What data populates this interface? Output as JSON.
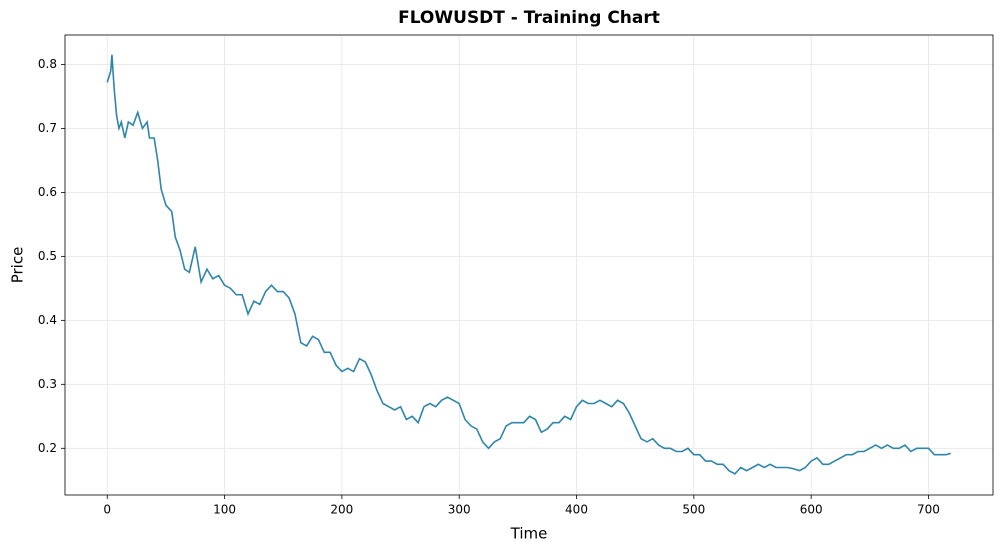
{
  "chart_data": {
    "type": "line",
    "title": "FLOWUSDT - Training Chart",
    "x_label": "Time",
    "y_label": "Price",
    "xlim": [
      -36,
      755
    ],
    "ylim": [
      0.127,
      0.846
    ],
    "xticks": [
      0,
      100,
      200,
      300,
      400,
      500,
      600,
      700
    ],
    "yticks": [
      0.2,
      0.3,
      0.4,
      0.5,
      0.6,
      0.7,
      0.8
    ],
    "grid": true,
    "x": [
      0,
      3,
      4,
      6,
      8,
      10,
      12,
      15,
      18,
      22,
      26,
      30,
      34,
      36,
      40,
      43,
      46,
      50,
      55,
      58,
      62,
      66,
      70,
      75,
      80,
      85,
      90,
      95,
      100,
      105,
      110,
      115,
      120,
      125,
      130,
      135,
      140,
      145,
      150,
      155,
      160,
      165,
      170,
      175,
      180,
      185,
      190,
      195,
      200,
      205,
      210,
      215,
      220,
      225,
      230,
      235,
      240,
      245,
      250,
      255,
      260,
      265,
      270,
      275,
      280,
      285,
      290,
      295,
      300,
      305,
      310,
      315,
      320,
      325,
      330,
      335,
      340,
      345,
      350,
      355,
      360,
      365,
      370,
      375,
      380,
      385,
      390,
      395,
      400,
      405,
      410,
      415,
      420,
      425,
      430,
      435,
      440,
      445,
      450,
      455,
      460,
      465,
      470,
      475,
      480,
      485,
      490,
      495,
      500,
      505,
      510,
      515,
      520,
      525,
      530,
      535,
      540,
      545,
      550,
      555,
      560,
      565,
      570,
      575,
      580,
      585,
      590,
      595,
      600,
      605,
      610,
      615,
      620,
      625,
      630,
      635,
      640,
      645,
      650,
      655,
      660,
      665,
      670,
      675,
      680,
      685,
      690,
      695,
      700,
      705,
      710,
      715,
      719
    ],
    "series": [
      {
        "name": "Price",
        "color": "#2e86ab",
        "values": [
          0.772,
          0.79,
          0.815,
          0.76,
          0.72,
          0.7,
          0.71,
          0.685,
          0.71,
          0.705,
          0.725,
          0.7,
          0.71,
          0.685,
          0.685,
          0.65,
          0.605,
          0.58,
          0.57,
          0.53,
          0.51,
          0.48,
          0.475,
          0.515,
          0.46,
          0.48,
          0.465,
          0.47,
          0.455,
          0.45,
          0.44,
          0.44,
          0.41,
          0.43,
          0.425,
          0.445,
          0.455,
          0.445,
          0.445,
          0.435,
          0.41,
          0.365,
          0.36,
          0.375,
          0.37,
          0.35,
          0.35,
          0.33,
          0.32,
          0.325,
          0.32,
          0.34,
          0.335,
          0.315,
          0.29,
          0.27,
          0.265,
          0.26,
          0.265,
          0.245,
          0.25,
          0.24,
          0.265,
          0.27,
          0.265,
          0.275,
          0.28,
          0.275,
          0.27,
          0.245,
          0.235,
          0.23,
          0.21,
          0.2,
          0.21,
          0.215,
          0.235,
          0.24,
          0.24,
          0.24,
          0.25,
          0.245,
          0.225,
          0.23,
          0.24,
          0.24,
          0.25,
          0.245,
          0.265,
          0.275,
          0.27,
          0.27,
          0.275,
          0.27,
          0.265,
          0.275,
          0.27,
          0.255,
          0.235,
          0.215,
          0.21,
          0.215,
          0.205,
          0.2,
          0.2,
          0.195,
          0.195,
          0.2,
          0.19,
          0.19,
          0.18,
          0.18,
          0.175,
          0.175,
          0.165,
          0.16,
          0.17,
          0.165,
          0.17,
          0.175,
          0.17,
          0.175,
          0.17,
          0.17,
          0.17,
          0.168,
          0.165,
          0.17,
          0.18,
          0.185,
          0.175,
          0.175,
          0.18,
          0.185,
          0.19,
          0.19,
          0.195,
          0.195,
          0.2,
          0.205,
          0.2,
          0.205,
          0.2,
          0.2,
          0.205,
          0.195,
          0.2,
          0.2,
          0.2,
          0.19,
          0.19,
          0.19,
          0.192
        ]
      }
    ]
  }
}
